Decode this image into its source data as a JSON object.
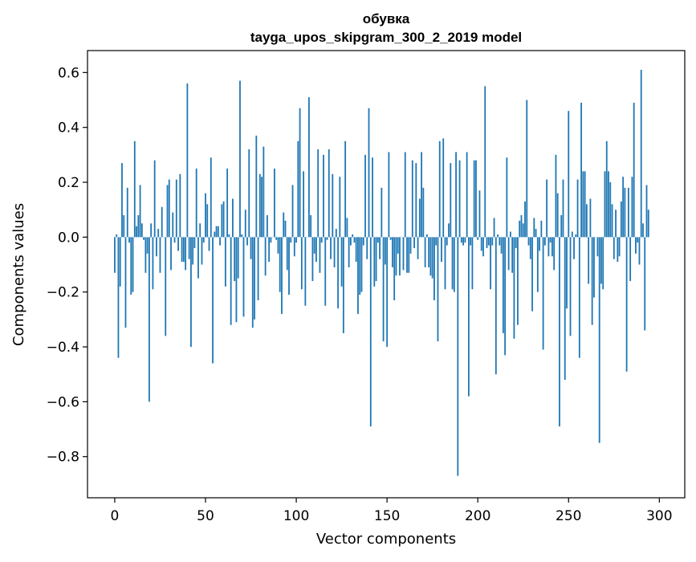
{
  "chart_data": {
    "type": "bar",
    "title": "обувка",
    "subtitle": "tayga_upos_skipgram_300_2_2019 model",
    "xlabel": "Vector components",
    "ylabel": "Components values",
    "xlim": [
      -15,
      314
    ],
    "ylim": [
      -0.95,
      0.68
    ],
    "x_ticks": [
      0,
      50,
      100,
      150,
      200,
      250,
      300
    ],
    "x_tick_labels": [
      "0",
      "50",
      "100",
      "150",
      "200",
      "250",
      "300"
    ],
    "y_ticks": [
      0.6,
      0.4,
      0.2,
      0.0,
      -0.2,
      -0.4,
      -0.6,
      -0.8
    ],
    "y_tick_labels": [
      "0.6",
      "0.4",
      "0.2",
      "0.0",
      "−0.2",
      "−0.4",
      "−0.6",
      "−0.8"
    ],
    "bar_color": "#1f77b4",
    "grid": false,
    "values": [
      -0.13,
      0.01,
      -0.44,
      -0.18,
      0.27,
      0.08,
      -0.33,
      0.18,
      -0.02,
      -0.21,
      -0.2,
      0.35,
      0.04,
      0.08,
      0.19,
      0.05,
      -0.01,
      -0.13,
      -0.06,
      -0.6,
      0.05,
      -0.19,
      0.28,
      -0.07,
      0.03,
      -0.13,
      0.11,
      0.0,
      -0.36,
      0.19,
      0.21,
      -0.12,
      0.09,
      -0.02,
      0.21,
      -0.05,
      0.23,
      -0.09,
      -0.09,
      -0.12,
      0.56,
      -0.08,
      -0.4,
      -0.1,
      -0.04,
      0.25,
      -0.15,
      0.05,
      -0.1,
      -0.02,
      0.16,
      0.12,
      -0.05,
      0.29,
      -0.46,
      0.02,
      0.04,
      0.04,
      -0.03,
      0.12,
      0.13,
      -0.18,
      0.25,
      0.01,
      -0.32,
      0.14,
      -0.16,
      -0.31,
      -0.15,
      0.57,
      0.01,
      -0.29,
      0.1,
      -0.03,
      0.32,
      -0.08,
      -0.33,
      -0.3,
      0.37,
      -0.23,
      0.23,
      0.22,
      0.33,
      -0.14,
      0.08,
      -0.09,
      -0.02,
      0.0,
      0.25,
      -0.01,
      -0.06,
      -0.2,
      -0.28,
      0.09,
      0.06,
      -0.12,
      -0.21,
      -0.02,
      0.19,
      -0.07,
      -0.02,
      0.35,
      0.47,
      -0.19,
      0.24,
      -0.25,
      0.0,
      0.51,
      0.08,
      -0.16,
      -0.06,
      -0.09,
      0.32,
      -0.13,
      -0.02,
      0.3,
      -0.25,
      -0.01,
      0.32,
      -0.08,
      0.23,
      -0.11,
      0.03,
      -0.26,
      0.22,
      -0.18,
      -0.35,
      0.35,
      0.07,
      -0.11,
      -0.03,
      0.01,
      -0.02,
      -0.09,
      -0.28,
      -0.21,
      -0.2,
      -0.03,
      0.3,
      -0.08,
      0.47,
      -0.69,
      0.29,
      -0.18,
      -0.16,
      -0.02,
      -0.08,
      0.18,
      -0.38,
      -0.1,
      -0.4,
      0.31,
      -0.01,
      -0.11,
      -0.23,
      -0.14,
      -0.06,
      -0.14,
      0.0,
      -0.12,
      0.31,
      -0.13,
      -0.13,
      -0.06,
      0.28,
      -0.04,
      0.27,
      -0.08,
      0.14,
      0.31,
      0.18,
      -0.11,
      0.01,
      -0.11,
      -0.14,
      -0.15,
      -0.23,
      -0.03,
      -0.38,
      0.35,
      -0.09,
      0.36,
      -0.19,
      -0.03,
      0.05,
      0.27,
      -0.19,
      -0.2,
      0.31,
      -0.87,
      0.28,
      -0.02,
      -0.03,
      -0.02,
      0.31,
      -0.58,
      -0.03,
      -0.19,
      0.28,
      0.28,
      -0.01,
      0.17,
      -0.05,
      -0.07,
      0.55,
      -0.04,
      -0.03,
      -0.19,
      -0.03,
      0.07,
      -0.5,
      0.01,
      -0.03,
      -0.06,
      -0.35,
      -0.43,
      0.29,
      -0.12,
      0.02,
      -0.13,
      -0.37,
      -0.04,
      -0.32,
      0.06,
      0.08,
      0.05,
      0.13,
      0.5,
      -0.03,
      -0.08,
      -0.27,
      0.07,
      0.03,
      -0.2,
      -0.05,
      0.06,
      -0.41,
      -0.03,
      0.21,
      -0.07,
      -0.02,
      -0.07,
      -0.12,
      0.3,
      0.16,
      -0.69,
      0.08,
      0.21,
      -0.52,
      -0.26,
      0.46,
      -0.36,
      0.02,
      -0.08,
      0.01,
      0.21,
      -0.44,
      0.49,
      0.24,
      0.24,
      0.12,
      -0.17,
      0.14,
      -0.32,
      -0.22,
      0.0,
      -0.07,
      -0.75,
      -0.17,
      -0.19,
      0.24,
      0.35,
      0.24,
      0.2,
      0.12,
      -0.08,
      0.1,
      -0.09,
      -0.07,
      0.13,
      0.22,
      0.18,
      -0.49,
      0.18,
      -0.16,
      0.22,
      0.49,
      -0.06,
      -0.02,
      -0.1,
      0.61,
      0.05,
      -0.34,
      0.19,
      0.1
    ]
  }
}
